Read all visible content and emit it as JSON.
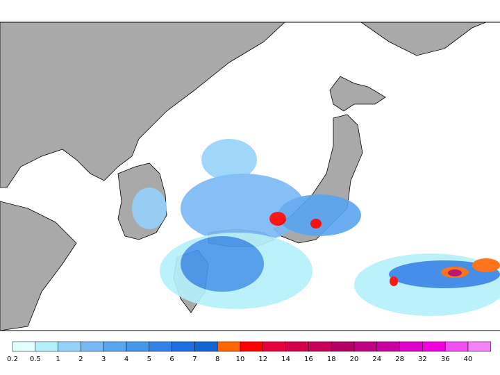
{
  "colorbar": {
    "levels": [
      0.2,
      0.5,
      1,
      2,
      3,
      4,
      5,
      6,
      7,
      8,
      10,
      12,
      14,
      16,
      18,
      20,
      24,
      28,
      32,
      36,
      40
    ],
    "colors": [
      "#e0fffe",
      "#b4f0fa",
      "#96d2fa",
      "#78b9f5",
      "#5aa5f0",
      "#4696eb",
      "#3282e6",
      "#1e6ee1",
      "#1464d2",
      "#ff6600",
      "#ff0000",
      "#e6003c",
      "#d2004b",
      "#c8005a",
      "#b40064",
      "#be0082",
      "#c800a0",
      "#dc00c8",
      "#f000dc",
      "#f050f0",
      "#f582f5"
    ]
  }
}
